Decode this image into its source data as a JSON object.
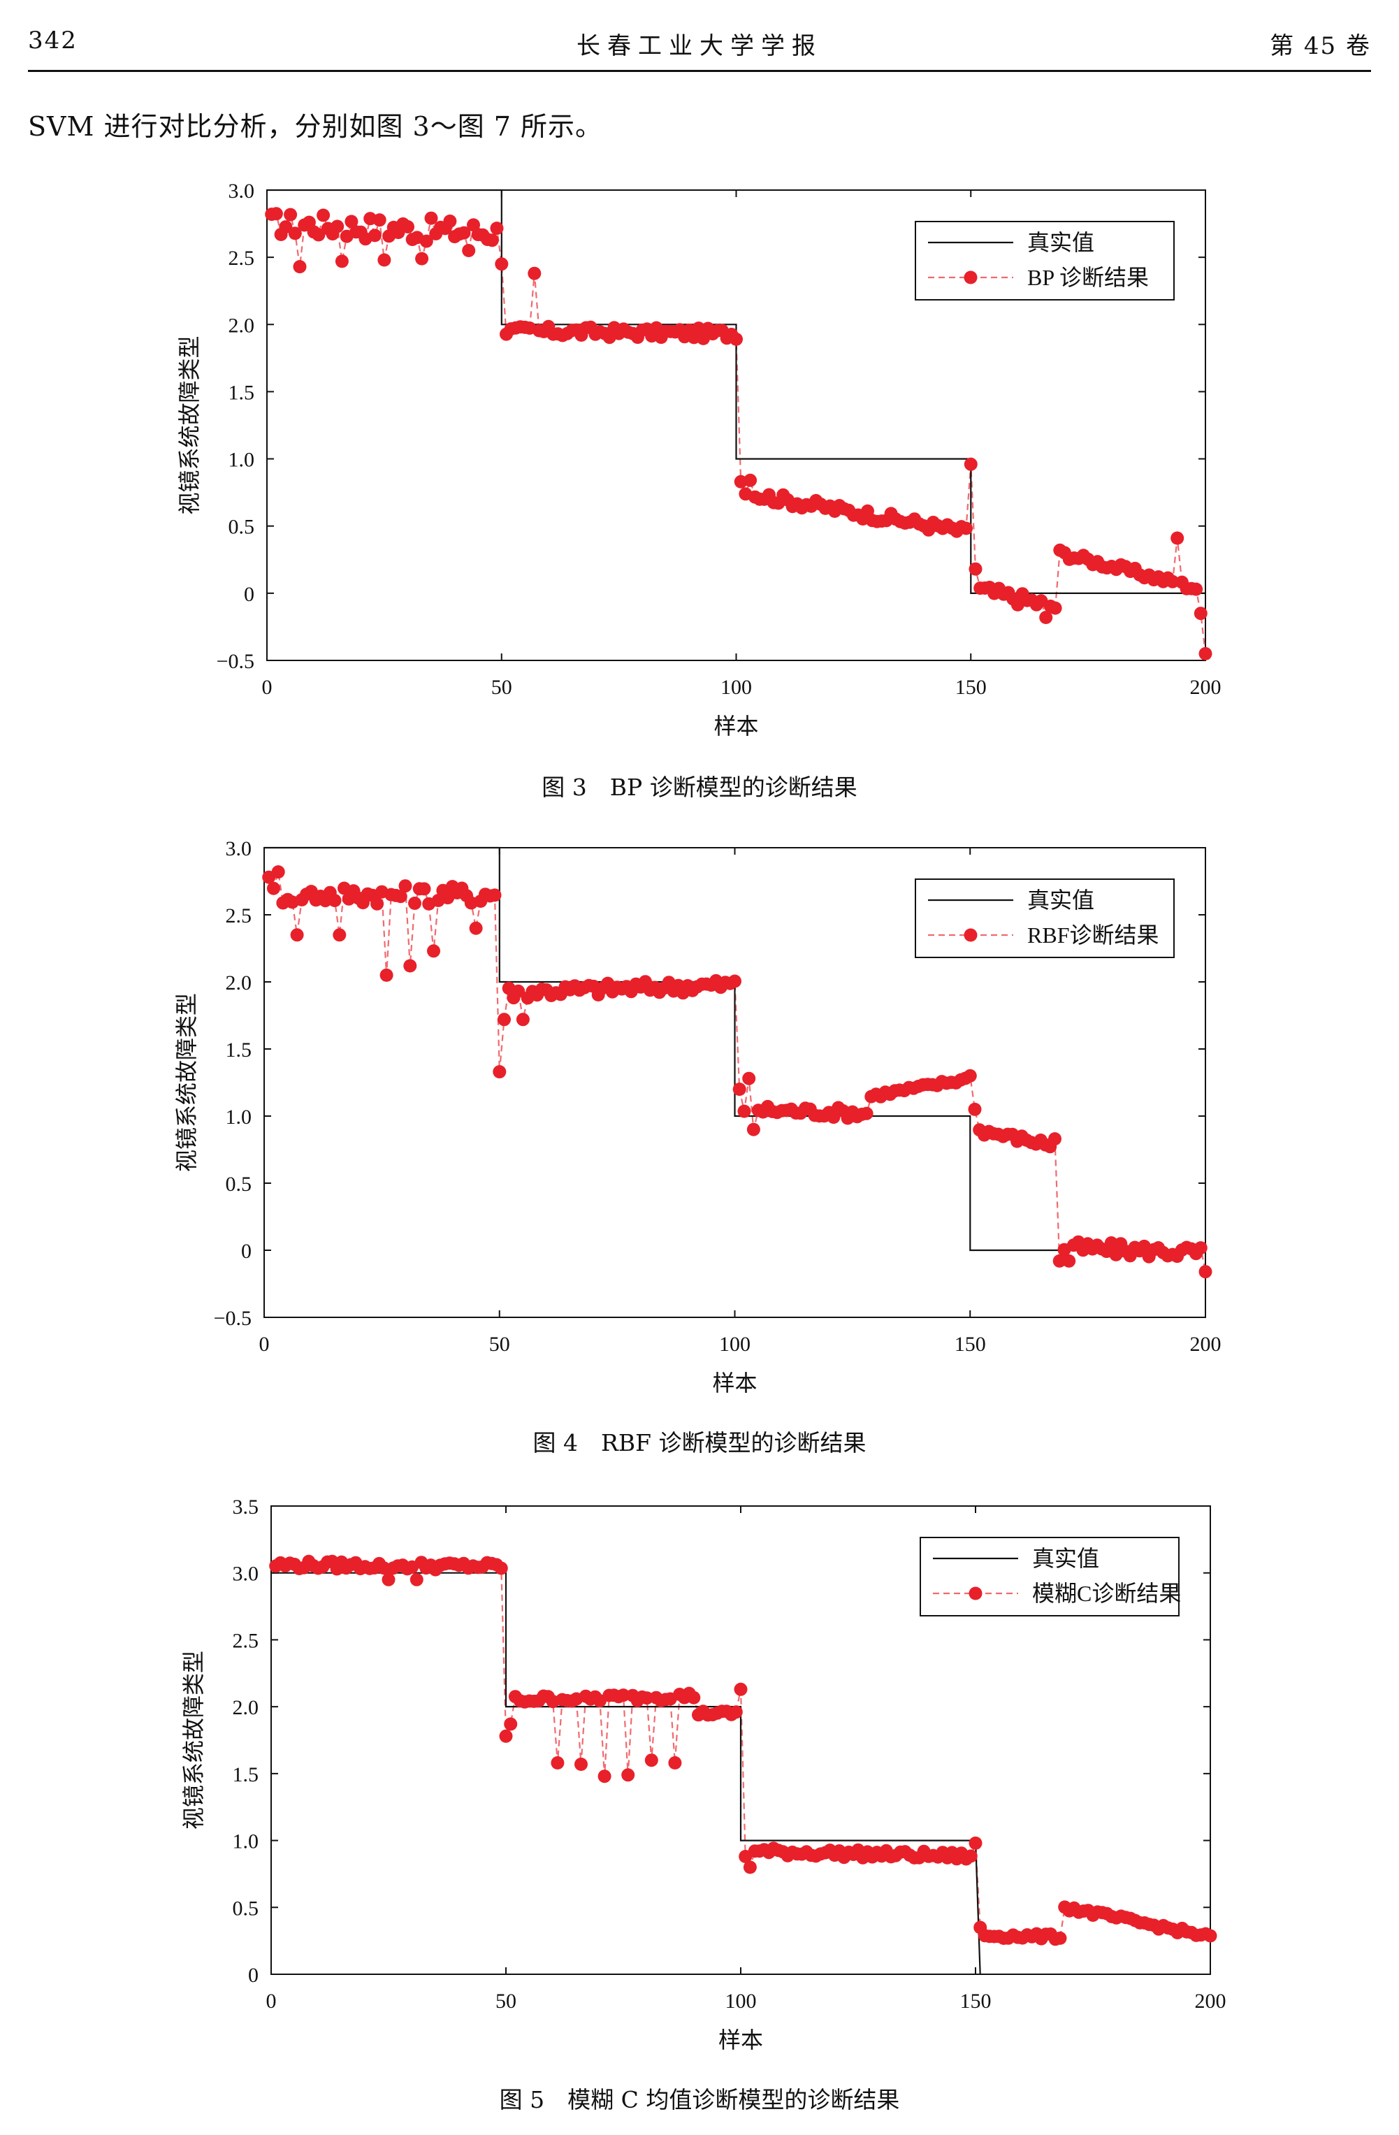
{
  "header": {
    "page_number": "342",
    "journal": "长春工业大学学报",
    "volume": "第 45 卷"
  },
  "intro_text": "SVM 进行对比分析，分别如图 3～图 7 所示。",
  "axis_labels": {
    "ylabel": "视镜系统故障类型",
    "xlabel": "样本"
  },
  "colors": {
    "true_line": "#111111",
    "pred": "#e8202a",
    "pred_line": "#f06a6f"
  },
  "figures": [
    {
      "caption": "图 3　BP 诊断模型的诊断结果",
      "legend_true": "真实值",
      "legend_pred": "BP 诊断结果"
    },
    {
      "caption": "图 4　RBF 诊断模型的诊断结果",
      "legend_true": "真实值",
      "legend_pred": "RBF诊断结果"
    },
    {
      "caption": "图 5　模糊 C 均值诊断模型的诊断结果",
      "legend_true": "真实值",
      "legend_pred": "模糊C诊断结果"
    }
  ],
  "chart_data": [
    {
      "type": "line",
      "title": "",
      "xlabel": "样本",
      "ylabel": "视镜系统故障类型",
      "xlim": [
        0,
        200
      ],
      "ylim": [
        -0.5,
        3.0
      ],
      "xticks": [
        0,
        50,
        100,
        150,
        200
      ],
      "yticks": [
        -0.5,
        0,
        0.5,
        1.0,
        1.5,
        2.0,
        2.5,
        3.0
      ],
      "ytick_labels": [
        "−0.5",
        "0",
        "0.5",
        "1.0",
        "1.5",
        "2.0",
        "2.5",
        "3.0"
      ],
      "legend_position": "top-right",
      "series": [
        {
          "name": "真实值",
          "style": "solid",
          "x": [
            0,
            50,
            50,
            100,
            100,
            150,
            150,
            200
          ],
          "y": [
            3,
            3,
            2,
            2,
            1,
            1,
            0,
            0
          ]
        },
        {
          "name": "BP 诊断结果",
          "style": "dashed-marker",
          "segments": [
            [
              1,
              50,
              2.75,
              2.68,
              0.09
            ],
            [
              51,
              100,
              1.95,
              1.93,
              0.04
            ],
            [
              101,
              150,
              0.75,
              0.45,
              0.04
            ],
            [
              151,
              168,
              0.03,
              -0.1,
              0.05
            ],
            [
              169,
              200,
              0.3,
              0.02,
              0.03
            ]
          ],
          "outliers": [
            [
              7,
              2.43
            ],
            [
              16,
              2.47
            ],
            [
              25,
              2.48
            ],
            [
              33,
              2.49
            ],
            [
              43,
              2.55
            ],
            [
              50,
              2.45
            ],
            [
              57,
              2.38
            ],
            [
              101,
              0.83
            ],
            [
              103,
              0.84
            ],
            [
              150,
              0.96
            ],
            [
              151,
              0.18
            ],
            [
              166,
              -0.18
            ],
            [
              194,
              0.41
            ],
            [
              200,
              -0.45
            ],
            [
              199,
              -0.15
            ]
          ]
        }
      ]
    },
    {
      "type": "line",
      "title": "",
      "xlabel": "样本",
      "ylabel": "视镜系统故障类型",
      "xlim": [
        0,
        200
      ],
      "ylim": [
        -0.5,
        3.0
      ],
      "xticks": [
        0,
        50,
        100,
        150,
        200
      ],
      "yticks": [
        -0.5,
        0,
        0.5,
        1.0,
        1.5,
        2.0,
        2.5,
        3.0
      ],
      "ytick_labels": [
        "−0.5",
        "0",
        "0.5",
        "1.0",
        "1.5",
        "2.0",
        "2.5",
        "3.0"
      ],
      "legend_position": "top-right",
      "series": [
        {
          "name": "真实值",
          "style": "solid",
          "x": [
            0,
            50,
            50,
            100,
            100,
            150,
            150,
            200
          ],
          "y": [
            3,
            3,
            2,
            2,
            1,
            1,
            0,
            0
          ]
        },
        {
          "name": "RBF诊断结果",
          "style": "dashed-marker",
          "segments": [
            [
              1,
              50,
              2.65,
              2.65,
              0.07
            ],
            [
              51,
              100,
              1.92,
              1.98,
              0.05
            ],
            [
              101,
              128,
              1.05,
              1.02,
              0.04
            ],
            [
              129,
              150,
              1.15,
              1.28,
              0.02
            ],
            [
              151,
              168,
              0.9,
              0.78,
              0.03
            ],
            [
              169,
              200,
              0.02,
              -0.02,
              0.05
            ]
          ],
          "outliers": [
            [
              1,
              2.78
            ],
            [
              3,
              2.82
            ],
            [
              7,
              2.35
            ],
            [
              16,
              2.35
            ],
            [
              26,
              2.05
            ],
            [
              31,
              2.12
            ],
            [
              36,
              2.23
            ],
            [
              45,
              2.4
            ],
            [
              50,
              1.33
            ],
            [
              51,
              1.72
            ],
            [
              55,
              1.72
            ],
            [
              101,
              1.2
            ],
            [
              103,
              1.28
            ],
            [
              104,
              0.9
            ],
            [
              150,
              1.3
            ],
            [
              151,
              1.05
            ],
            [
              168,
              0.83
            ],
            [
              169,
              -0.08
            ],
            [
              171,
              -0.08
            ],
            [
              200,
              -0.16
            ]
          ]
        }
      ]
    },
    {
      "type": "line",
      "title": "",
      "xlabel": "样本",
      "ylabel": "视镜系统故障类型",
      "xlim": [
        0,
        200
      ],
      "ylim": [
        0,
        3.5
      ],
      "xticks": [
        0,
        50,
        100,
        150,
        200
      ],
      "yticks": [
        0,
        0.5,
        1.0,
        1.5,
        2.0,
        2.5,
        3.0,
        3.5
      ],
      "ytick_labels": [
        "0",
        "0.5",
        "1.0",
        "1.5",
        "2.0",
        "2.5",
        "3.0",
        "3.5"
      ],
      "legend_position": "top-right",
      "series": [
        {
          "name": "真实值",
          "style": "solid",
          "x": [
            0,
            50,
            50,
            100,
            100,
            150,
            150,
            151,
            151
          ],
          "y": [
            3,
            3,
            2,
            2,
            1,
            1,
            1,
            0,
            0
          ]
        },
        {
          "name": "模糊C诊断结果",
          "style": "dashed-marker",
          "segments": [
            [
              1,
              50,
              3.06,
              3.05,
              0.03
            ],
            [
              51,
              90,
              2.05,
              2.08,
              0.03
            ],
            [
              91,
              100,
              1.95,
              1.95,
              0.02
            ],
            [
              101,
              150,
              0.92,
              0.88,
              0.03
            ],
            [
              151,
              168,
              0.29,
              0.28,
              0.02
            ],
            [
              169,
              200,
              0.5,
              0.28,
              0.02
            ]
          ],
          "outliers": [
            [
              25,
              2.95
            ],
            [
              31,
              2.95
            ],
            [
              50,
              1.78
            ],
            [
              51,
              1.87
            ],
            [
              61,
              1.58
            ],
            [
              66,
              1.57
            ],
            [
              71,
              1.48
            ],
            [
              76,
              1.49
            ],
            [
              81,
              1.6
            ],
            [
              86,
              1.58
            ],
            [
              100,
              2.13
            ],
            [
              101,
              0.88
            ],
            [
              102,
              0.8
            ],
            [
              150,
              0.98
            ],
            [
              151,
              0.35
            ]
          ]
        }
      ]
    }
  ]
}
